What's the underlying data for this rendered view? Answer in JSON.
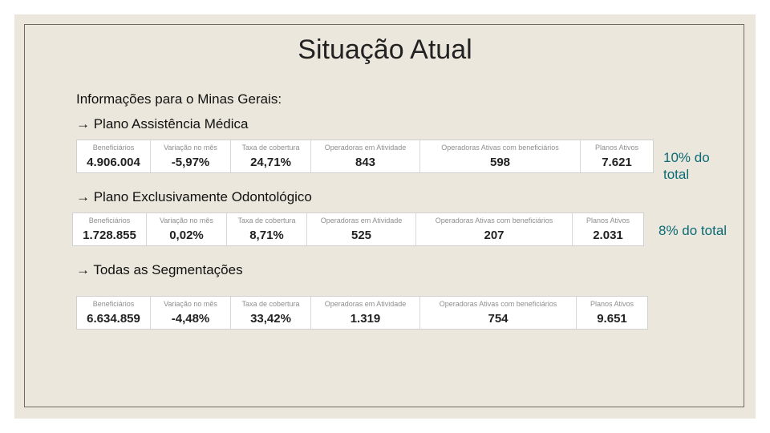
{
  "slide": {
    "title": "Situação Atual",
    "intro": "Informações para o Minas Gerais:"
  },
  "sections": [
    {
      "heading": "→ Plano Assistência Médica",
      "note": "10% do total",
      "columns": [
        {
          "header": "Beneficiários",
          "value": "4.906.004"
        },
        {
          "header": "Variação no mês",
          "value": "-5,97%"
        },
        {
          "header": "Taxa de cobertura",
          "value": "24,71%"
        },
        {
          "header": "Operadoras em Atividade",
          "value": "843"
        },
        {
          "header": "Operadoras Ativas com beneficiários",
          "value": "598"
        },
        {
          "header": "Planos Ativos",
          "value": "7.621"
        }
      ]
    },
    {
      "heading": "→ Plano Exclusivamente Odontológico",
      "note": "8% do total",
      "columns": [
        {
          "header": "Beneficiários",
          "value": "1.728.855"
        },
        {
          "header": "Variação no mês",
          "value": "0,02%"
        },
        {
          "header": "Taxa de cobertura",
          "value": "8,71%"
        },
        {
          "header": "Operadoras em Atividade",
          "value": "525"
        },
        {
          "header": "Operadoras Ativas com beneficiários",
          "value": "207"
        },
        {
          "header": "Planos Ativos",
          "value": "2.031"
        }
      ]
    },
    {
      "heading": "→ Todas as Segmentações",
      "note": "",
      "columns": [
        {
          "header": "Beneficiários",
          "value": "6.634.859"
        },
        {
          "header": "Variação no mês",
          "value": "-4,48%"
        },
        {
          "header": "Taxa de cobertura",
          "value": "33,42%"
        },
        {
          "header": "Operadoras em Atividade",
          "value": "1.319"
        },
        {
          "header": "Operadoras Ativas com beneficiários",
          "value": "754"
        },
        {
          "header": "Planos Ativos",
          "value": "9.651"
        }
      ]
    }
  ],
  "colors": {
    "background": "#ebe7dc",
    "note": "#0b6b75"
  }
}
